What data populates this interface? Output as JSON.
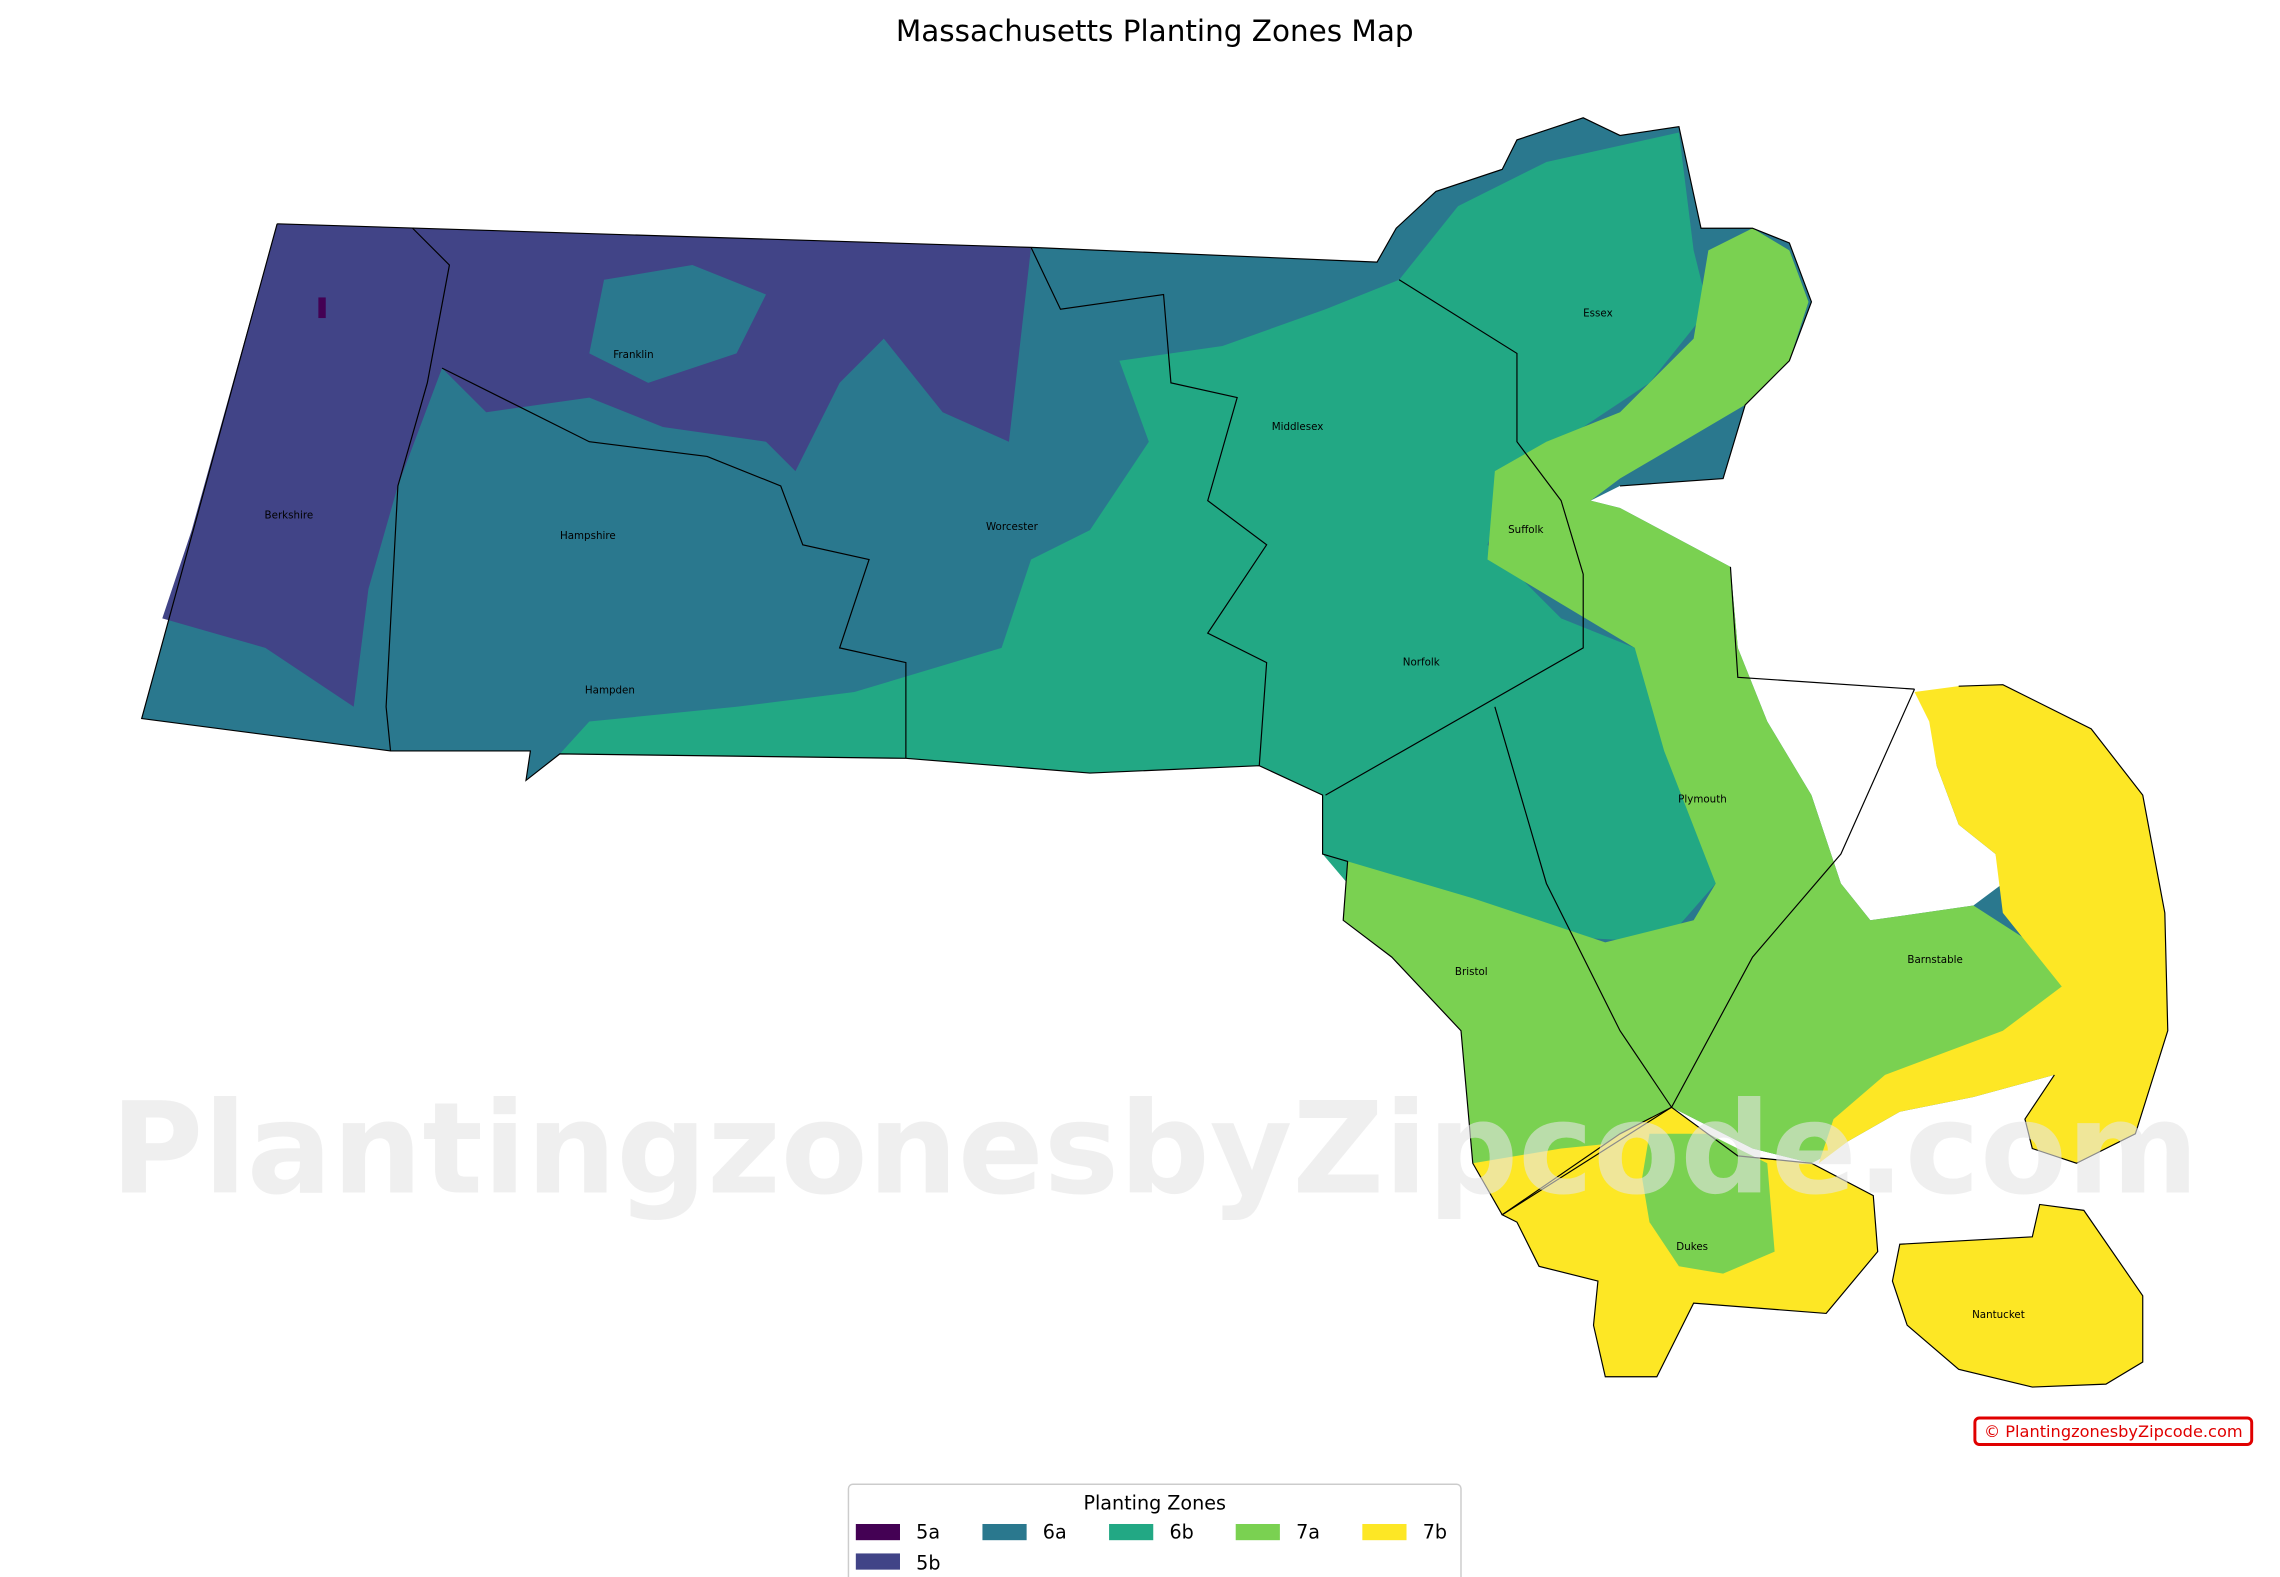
{
  "title": "Massachusetts Planting Zones Map",
  "watermark": "PlantingzonesbyZipcode.com",
  "copyright": "© PlantingzonesbyZipcode.com",
  "legend": {
    "title": "Planting Zones",
    "items": [
      {
        "label": "5a",
        "color": "#440154"
      },
      {
        "label": "5b",
        "color": "#414487"
      },
      {
        "label": "6a",
        "color": "#2a788e"
      },
      {
        "label": "6b",
        "color": "#22a884"
      },
      {
        "label": "7a",
        "color": "#7ad151"
      },
      {
        "label": "7b",
        "color": "#fde725"
      }
    ]
  },
  "counties": [
    "Berkshire",
    "Franklin",
    "Hampshire",
    "Hampden",
    "Worcester",
    "Middlesex",
    "Essex",
    "Suffolk",
    "Norfolk",
    "Plymouth",
    "Bristol",
    "Barnstable",
    "Dukes",
    "Nantucket"
  ],
  "colors": {
    "copyright": "#e00000",
    "watermark": "#e6e6e6"
  }
}
